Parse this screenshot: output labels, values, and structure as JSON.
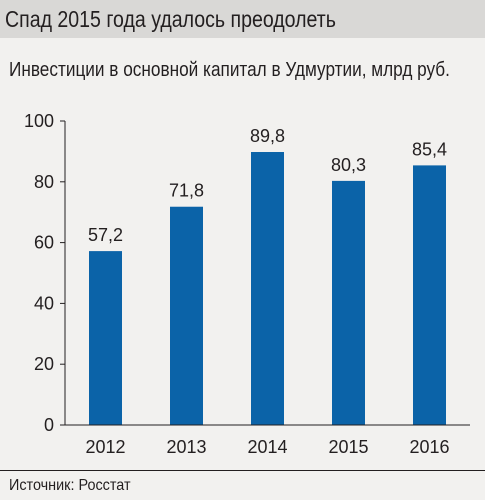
{
  "header": {
    "title": "Спад 2015 года удалось преодолеть"
  },
  "chart_data": {
    "type": "bar",
    "title": "Инвестиции в основной капитал в Удмуртии, млрд руб.",
    "xlabel": "",
    "ylabel": "",
    "categories": [
      "2012",
      "2013",
      "2014",
      "2015",
      "2016"
    ],
    "values": [
      57.2,
      71.8,
      89.8,
      80.3,
      85.4
    ],
    "value_labels": [
      "57,2",
      "71,8",
      "89,8",
      "80,3",
      "85,4"
    ],
    "ylim": [
      0,
      100
    ],
    "yticks": [
      "0",
      "20",
      "40",
      "60",
      "80",
      "100"
    ],
    "grid": false,
    "colors": {
      "bar": "#0b63a8"
    }
  },
  "footer": {
    "source": "Источник: Росстат"
  }
}
